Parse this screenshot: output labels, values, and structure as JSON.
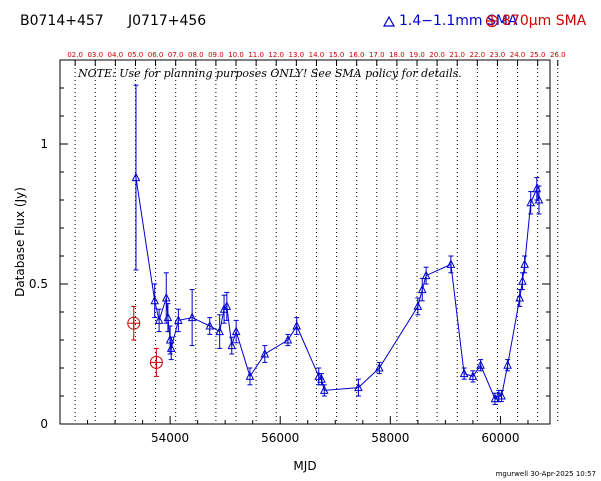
{
  "header": {
    "source_name": "B0714+457",
    "alt_name": "J0717+456",
    "legend_sma": "1.4−1.1mm SMA",
    "legend_870": "870μm SMA"
  },
  "note": "NOTE: Use for planning purposes ONLY!  See SMA policy for details.",
  "credit": "mgurwell 30-Apr-2025 10:57",
  "colors": {
    "sma": "#0000cc",
    "submm": "#cc0000",
    "grid": "#000000"
  },
  "chart_data": {
    "type": "scatter",
    "xlabel": "MJD",
    "ylabel": "Database Flux (Jy)",
    "xlim": [
      52000,
      60900
    ],
    "ylim": [
      0,
      1.3
    ],
    "x_ticks": [
      54000,
      56000,
      58000,
      60000
    ],
    "y_ticks": [
      0,
      0.5,
      1
    ],
    "y_tick_labels": [
      "0",
      "0.5",
      "1"
    ],
    "top_axis_labels": [
      "02.0",
      "03.0",
      "04.0",
      "05.0",
      "06.0",
      "07.0",
      "08.0",
      "09.0",
      "10.0",
      "11.0",
      "12.0",
      "13.0",
      "14.0",
      "15.0",
      "16.0",
      "17.0",
      "18.0",
      "19.0",
      "20.0",
      "21.0",
      "22.0",
      "23.0",
      "24.0",
      "25.0",
      "26.0"
    ],
    "top_axis_mjd_start": 52275,
    "top_axis_step": 365.25,
    "series": [
      {
        "name": "1.4−1.1mm SMA",
        "marker": "triangle",
        "connected": true,
        "x": [
          53380,
          53720,
          53800,
          53930,
          53960,
          54000,
          54020,
          54150,
          54400,
          54720,
          54900,
          54980,
          55030,
          55120,
          55200,
          55450,
          55720,
          56140,
          56300,
          56700,
          56750,
          56800,
          57420,
          57800,
          58500,
          58580,
          58650,
          59100,
          59340,
          59500,
          59640,
          59900,
          59970,
          60020,
          60130,
          60350,
          60400,
          60440,
          60550,
          60660,
          60700
        ],
        "y": [
          0.88,
          0.44,
          0.37,
          0.45,
          0.38,
          0.3,
          0.27,
          0.37,
          0.38,
          0.35,
          0.33,
          0.41,
          0.42,
          0.28,
          0.33,
          0.17,
          0.25,
          0.3,
          0.35,
          0.17,
          0.16,
          0.12,
          0.13,
          0.2,
          0.42,
          0.48,
          0.53,
          0.57,
          0.18,
          0.17,
          0.21,
          0.09,
          0.1,
          0.1,
          0.21,
          0.45,
          0.51,
          0.57,
          0.79,
          0.84,
          0.8
        ],
        "err": [
          0.33,
          0.06,
          0.04,
          0.09,
          0.05,
          0.05,
          0.04,
          0.04,
          0.1,
          0.03,
          0.06,
          0.05,
          0.05,
          0.03,
          0.04,
          0.03,
          0.03,
          0.02,
          0.03,
          0.03,
          0.02,
          0.02,
          0.03,
          0.02,
          0.03,
          0.04,
          0.03,
          0.03,
          0.02,
          0.02,
          0.02,
          0.02,
          0.02,
          0.02,
          0.02,
          0.03,
          0.03,
          0.03,
          0.04,
          0.04,
          0.05
        ]
      },
      {
        "name": "870μm SMA",
        "marker": "circle-plus",
        "connected": false,
        "x": [
          53340,
          53750
        ],
        "y": [
          0.36,
          0.22
        ],
        "err": [
          0.06,
          0.05
        ]
      }
    ]
  }
}
